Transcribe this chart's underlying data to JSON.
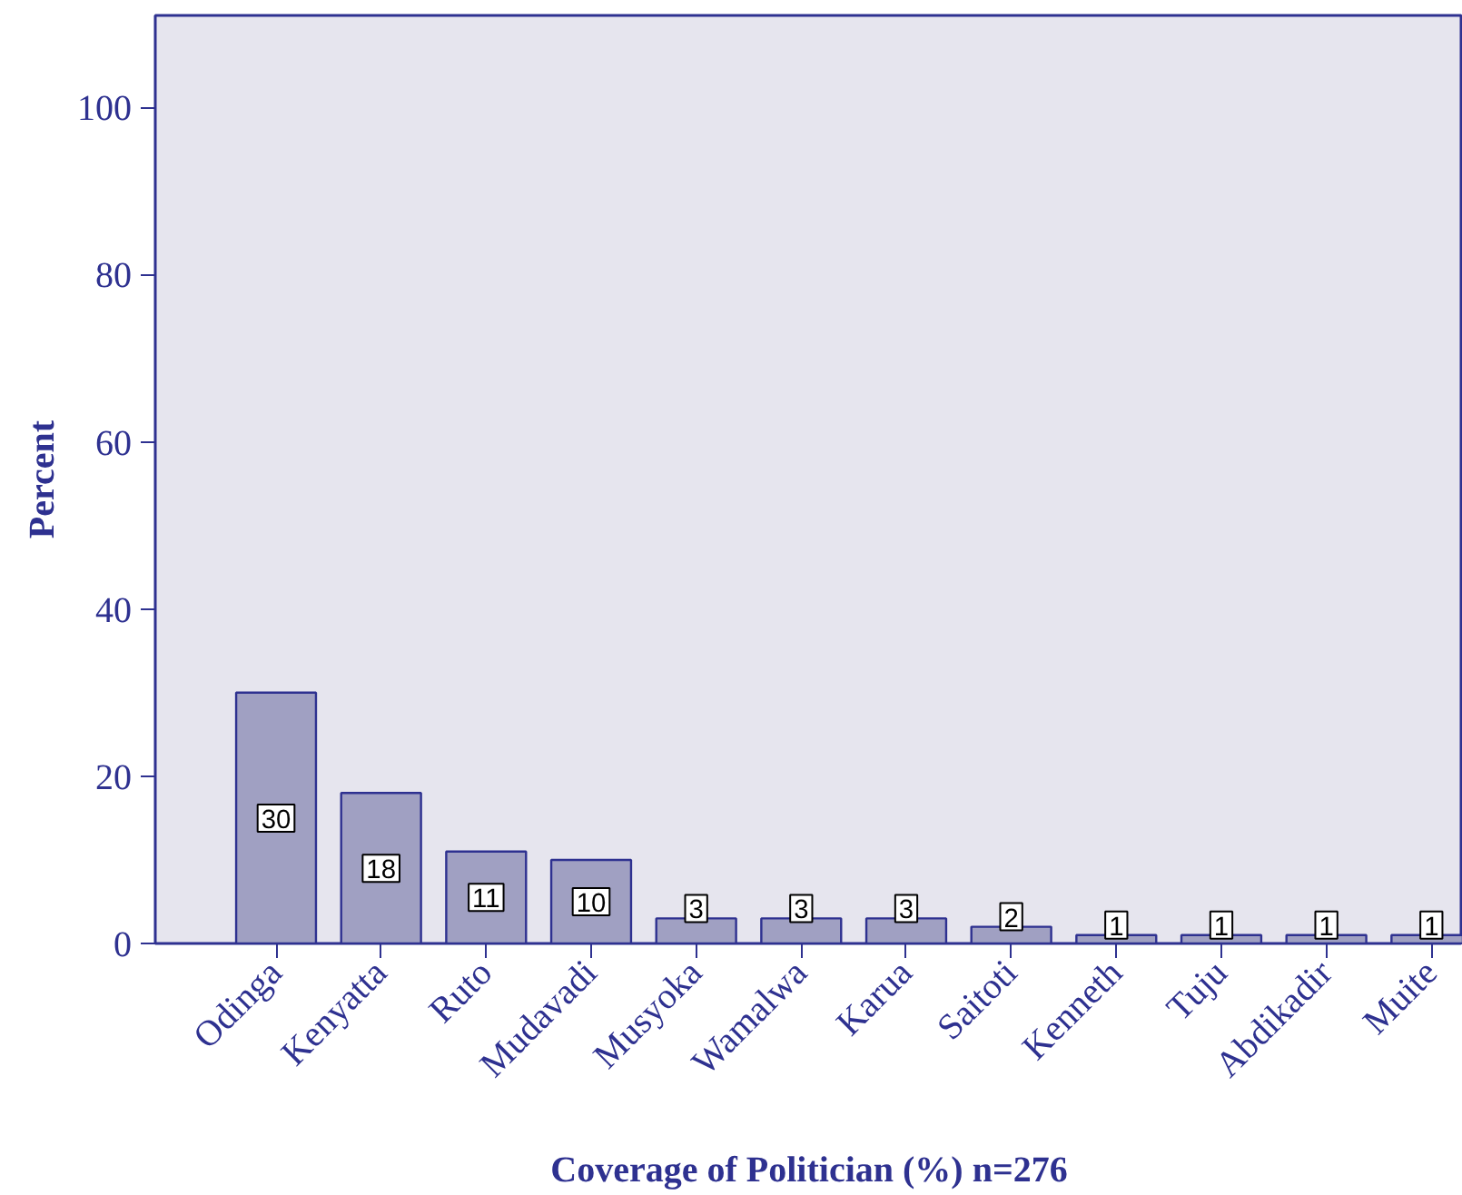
{
  "chart_data": {
    "type": "bar",
    "xlabel": "Coverage of Politician (%) n=276",
    "ylabel": "Percent",
    "categories": [
      "Odinga",
      "Kenyatta",
      "Ruto",
      "Mudavadi",
      "Musyoka",
      "Wamalwa",
      "Karua",
      "Saitoti",
      "Kenneth",
      "Tuju",
      "Abdikadir",
      "Muite"
    ],
    "values": [
      30,
      18,
      11,
      10,
      3,
      3,
      3,
      2,
      1,
      1,
      1,
      1
    ],
    "color": "#a0a0c2",
    "ylim": [
      0,
      111
    ],
    "yticks": [
      0,
      20,
      40,
      60,
      80,
      100
    ],
    "data_labels": true,
    "grid": false
  }
}
